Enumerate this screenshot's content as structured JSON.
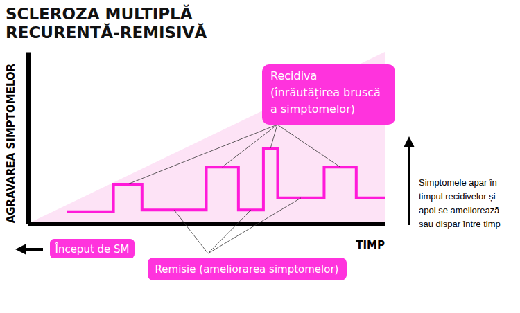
{
  "chart_data": {
    "type": "line",
    "title": [
      "SCLEROZA MULTIPLĂ",
      "RECURENTĂ-REMISIVĂ"
    ],
    "y_label": "AGRAVAREA SIMPTOMELOR",
    "x_label": "TIMP",
    "xlim": [
      0,
      100
    ],
    "ylim": [
      0,
      100
    ],
    "tick_labels": false,
    "line_style": "step",
    "color": "#ff1ad9",
    "x": [
      11,
      24,
      32,
      50,
      59,
      66,
      70,
      83,
      92,
      100
    ],
    "values": [
      7,
      23,
      8,
      33,
      8,
      44,
      15,
      33,
      15,
      15
    ],
    "annotations": {
      "relapse": [
        "Recidiva",
        "(înrăutățirea bruscă",
        "a simptomelor)"
      ],
      "remission": "Remisie (ameliorarea simptomelor)",
      "onset": "Început de SM",
      "note": [
        "Simptomele apar în",
        "timpul recidivelor și",
        "apoi se ameliorează",
        "sau dispar între timp"
      ]
    }
  }
}
